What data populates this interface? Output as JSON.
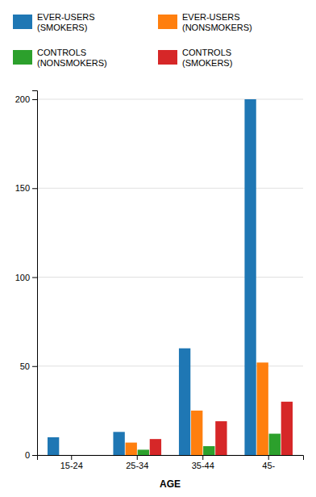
{
  "chart_data": {
    "type": "bar",
    "categories": [
      "15-24",
      "25-34",
      "35-44",
      "45-"
    ],
    "series": [
      {
        "name": "EVER-USERS\n(SMOKERS)",
        "values": [
          10,
          13,
          60,
          200
        ]
      },
      {
        "name": "EVER-USERS\n(NONSMOKERS)",
        "values": [
          0,
          7,
          25,
          52
        ]
      },
      {
        "name": "CONTROLS\n(NONSMOKERS)",
        "values": [
          0,
          3,
          5,
          12
        ]
      },
      {
        "name": "CONTROLS\n(SMOKERS)",
        "values": [
          0,
          9,
          19,
          30
        ]
      }
    ],
    "xlabel": "AGE",
    "ylim": [
      0,
      205
    ],
    "yticks": [
      0,
      50,
      100,
      150,
      200
    ],
    "grid": true
  }
}
